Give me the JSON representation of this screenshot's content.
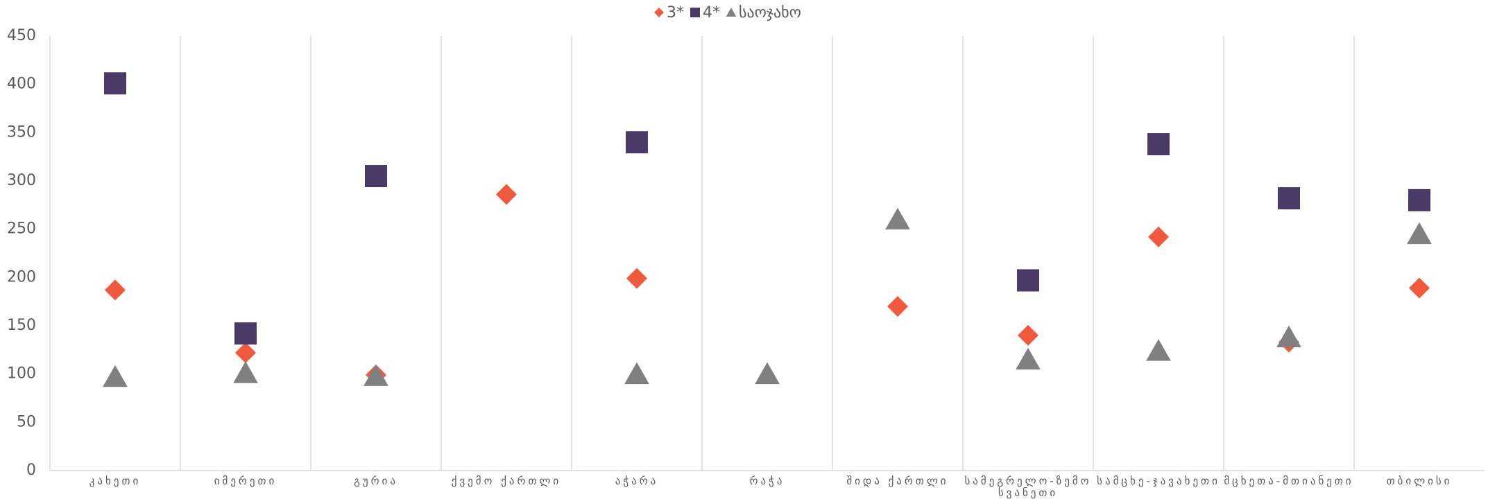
{
  "chart_data": {
    "type": "scatter",
    "categories": [
      "კახეთი",
      "იმერეთი",
      "გურია",
      "ქვემო ქართლი",
      "აჭარა",
      "რაჭა",
      "შიდა ქართლი",
      "სამეგრელო-ზემო სვანეთი",
      "სამცხე-ჯავახეთი",
      "მცხეთა-მთიანეთი",
      "თბილისი"
    ],
    "series": [
      {
        "name": "3*",
        "color": "#f05a3c",
        "marker": "diamond",
        "values": [
          187,
          122,
          99,
          286,
          199,
          null,
          170,
          140,
          242,
          133,
          189
        ]
      },
      {
        "name": "4*",
        "color": "#4b3a67",
        "marker": "square",
        "values": [
          401,
          142,
          305,
          null,
          340,
          null,
          null,
          197,
          338,
          282,
          280
        ]
      },
      {
        "name": "საოჯახო",
        "color": "#808080",
        "marker": "triangle",
        "values": [
          97,
          101,
          98,
          null,
          100,
          100,
          260,
          115,
          124,
          138,
          245
        ]
      }
    ],
    "ylim": [
      0,
      450
    ],
    "yticks": [
      0,
      50,
      100,
      150,
      200,
      250,
      300,
      350,
      400,
      450
    ],
    "grid": true,
    "legend": "top"
  }
}
